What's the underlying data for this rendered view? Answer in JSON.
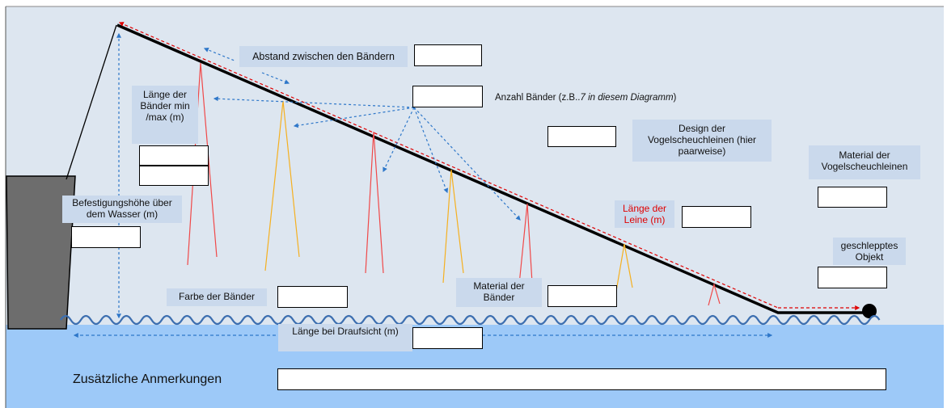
{
  "labels": {
    "abstand": "Abstand zwischen den Bändern",
    "anzahl_prefix": "Anzahl Bänder (z.B..",
    "anzahl_italic": "7 in diesem  Diagramm",
    "anzahl_suffix": ")",
    "laenge_baender": "Länge der Bänder min /max (m)",
    "design": "Design der Vogelscheuchleinen (hier paarweise)",
    "material_leinen": "Material der Vogelscheuchleinen",
    "befestigung": "Befestigungshöhe über dem Wasser (m)",
    "laenge_leine": "Länge der Leine (m)",
    "geschlepptes": "geschlepptes Objekt",
    "farbe": "Farbe der Bänder",
    "material_baender": "Material der Bänder",
    "draufsicht": "Länge bei Draufsicht (m)",
    "anmerkungen": "Zusätzliche Anmerkungen"
  },
  "colors": {
    "sky": "#dde6f0",
    "water": "#9dc9f8",
    "label_bg": "#cad9ec",
    "hull": "#6d6d6d",
    "wave": "#3d6fb0",
    "streamer_red": "#f04848",
    "streamer_yellow": "#f5b020",
    "dash_blue": "#2e77c9",
    "dash_red": "#e00000"
  },
  "input_boxes": [
    "abstand",
    "anzahl",
    "laenge-min",
    "laenge-max",
    "design",
    "material-leinen",
    "befestigung",
    "laenge-leine",
    "geschlepptes-objekt",
    "farbe",
    "material-baender",
    "draufsicht",
    "anmerkungen"
  ]
}
